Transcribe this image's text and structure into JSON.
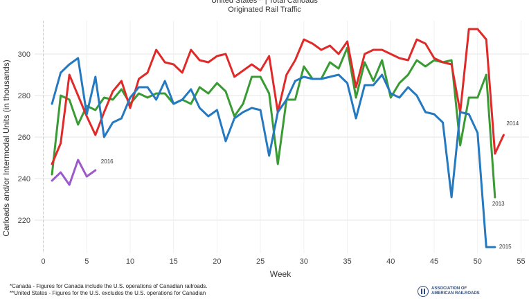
{
  "header": {
    "title": "United States** | Total Carloads",
    "subtitle": "Originated Rail Traffic"
  },
  "footnotes": {
    "line1": "*Canada - Figures for Canada include the U.S. operations of Canadian railroads.",
    "line2": "**United States - Figures for the U.S. excludes the U.S. operations for Canadian"
  },
  "logo": {
    "line1": "ASSOCIATION OF",
    "line2": "AMERICAN RAILROADS",
    "color": "#2d4a7a"
  },
  "chart_data": {
    "type": "line",
    "title": "United States** | Total Carloads",
    "subtitle": "Originated Rail Traffic",
    "xlabel": "Week",
    "ylabel": "Carloads and/or Intermodal Units (in thousands)",
    "xlim": [
      -1,
      56
    ],
    "ylim": [
      204,
      316
    ],
    "xticks": [
      0,
      5,
      10,
      15,
      20,
      25,
      30,
      35,
      40,
      45,
      50,
      55
    ],
    "yticks": [
      220,
      240,
      260,
      280,
      300
    ],
    "grid": true,
    "legend": "none (series labeled at line ends)",
    "series": [
      {
        "name": "2013",
        "color": "#3a9b35",
        "x": [
          1,
          2,
          3,
          4,
          5,
          6,
          7,
          8,
          9,
          10,
          11,
          12,
          13,
          14,
          15,
          16,
          17,
          18,
          19,
          20,
          21,
          22,
          23,
          24,
          25,
          26,
          27,
          28,
          29,
          30,
          31,
          32,
          33,
          34,
          35,
          36,
          37,
          38,
          39,
          40,
          41,
          42,
          43,
          44,
          45,
          46,
          47,
          48,
          49,
          50,
          51,
          52
        ],
        "values": [
          242,
          280,
          278,
          266,
          275,
          273,
          279,
          278,
          283,
          276,
          281,
          279,
          281,
          281,
          276,
          278,
          276,
          284,
          281,
          286,
          282,
          270,
          276,
          289,
          289,
          281,
          247,
          278,
          278,
          294,
          288,
          288,
          296,
          293,
          303,
          279,
          296,
          287,
          297,
          279,
          286,
          290,
          297,
          294,
          297,
          296,
          297,
          256,
          279,
          279,
          290,
          231
        ]
      },
      {
        "name": "2014",
        "color": "#e02a2a",
        "x": [
          1,
          2,
          3,
          4,
          5,
          6,
          7,
          8,
          9,
          10,
          11,
          12,
          13,
          14,
          15,
          16,
          17,
          18,
          19,
          20,
          21,
          22,
          23,
          24,
          25,
          26,
          27,
          28,
          29,
          30,
          31,
          32,
          33,
          34,
          35,
          36,
          37,
          38,
          39,
          40,
          41,
          42,
          43,
          44,
          45,
          46,
          47,
          48,
          49,
          50,
          51,
          52,
          53
        ],
        "values": [
          247,
          257,
          290,
          280,
          270,
          261,
          272,
          282,
          287,
          274,
          288,
          291,
          302,
          296,
          295,
          291,
          302,
          297,
          296,
          299,
          300,
          289,
          292,
          295,
          292,
          299,
          272,
          290,
          297,
          307,
          305,
          302,
          304,
          300,
          306,
          284,
          300,
          302,
          302,
          300,
          298,
          297,
          307,
          305,
          298,
          296,
          295,
          272,
          312,
          312,
          307,
          252,
          261
        ]
      },
      {
        "name": "2015",
        "color": "#2479c0",
        "x": [
          1,
          2,
          3,
          4,
          5,
          6,
          7,
          8,
          9,
          10,
          11,
          12,
          13,
          14,
          15,
          16,
          17,
          18,
          19,
          20,
          21,
          22,
          23,
          24,
          25,
          26,
          27,
          28,
          29,
          30,
          31,
          32,
          33,
          34,
          35,
          36,
          37,
          38,
          39,
          40,
          41,
          42,
          43,
          44,
          45,
          46,
          47,
          48,
          49,
          50,
          51,
          52
        ],
        "values": [
          276,
          291,
          295,
          298,
          271,
          289,
          260,
          267,
          269,
          279,
          284,
          284,
          278,
          287,
          276,
          278,
          283,
          274,
          270,
          273,
          258,
          269,
          272,
          274,
          273,
          251,
          272,
          278,
          287,
          289,
          288,
          288,
          289,
          290,
          286,
          269,
          285,
          285,
          290,
          281,
          279,
          284,
          280,
          272,
          271,
          267,
          231,
          272,
          271,
          262,
          207,
          207
        ]
      },
      {
        "name": "2016",
        "color": "#9b59c9",
        "x": [
          1,
          2,
          3,
          4,
          5,
          6
        ],
        "values": [
          239,
          243,
          237,
          249,
          241,
          244
        ]
      }
    ]
  }
}
